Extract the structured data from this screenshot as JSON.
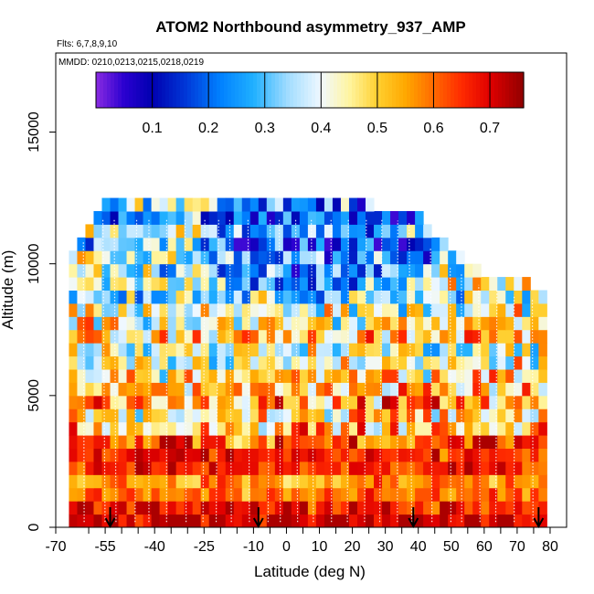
{
  "chart_data": {
    "type": "heatmap",
    "title": "ATOM2 Northbound asymmetry_937_AMP",
    "flights_label": "Flts: 6,7,8,9,10",
    "dates_label": "MMDD: 0210,0213,0215,0218,0219",
    "xlabel": "Latitude (deg N)",
    "ylabel": "Altitude (m)",
    "xlim": [
      -70,
      85
    ],
    "ylim": [
      0,
      18000
    ],
    "x_ticks": [
      -70,
      -55,
      -40,
      -25,
      -10,
      0,
      10,
      20,
      30,
      40,
      50,
      60,
      70,
      80
    ],
    "x_tick_labels": [
      "-70",
      "-55",
      "-40",
      "-25",
      "-10",
      "0",
      "10",
      "20",
      "30",
      "40",
      "50",
      "60",
      "70",
      "80"
    ],
    "x_minor_ticks": [
      -60,
      -50,
      -45,
      -35,
      -30,
      -20,
      -15,
      -5,
      5,
      15,
      25,
      35,
      45,
      55,
      65,
      75
    ],
    "y_ticks": [
      0,
      5000,
      10000,
      15000
    ],
    "y_tick_labels": [
      "0",
      "5000",
      "10000",
      "15000"
    ],
    "colorbar": {
      "range": [
        0.0,
        0.76
      ],
      "ticks": [
        0.1,
        0.2,
        0.3,
        0.4,
        0.5,
        0.6,
        0.7
      ],
      "tick_labels": [
        "0.1",
        "0.2",
        "0.3",
        "0.4",
        "0.5",
        "0.6",
        "0.7"
      ],
      "divider_values": [
        0.1,
        0.2,
        0.3,
        0.4,
        0.5,
        0.6,
        0.7
      ],
      "stops": [
        {
          "v": 0.0,
          "color": "#8a2be2"
        },
        {
          "v": 0.05,
          "color": "#2a00d0"
        },
        {
          "v": 0.1,
          "color": "#0000b0"
        },
        {
          "v": 0.16,
          "color": "#0038d8"
        },
        {
          "v": 0.22,
          "color": "#0080ff"
        },
        {
          "v": 0.28,
          "color": "#20b0ff"
        },
        {
          "v": 0.34,
          "color": "#a0dcff"
        },
        {
          "v": 0.4,
          "color": "#f0f8ff"
        },
        {
          "v": 0.45,
          "color": "#fff5a0"
        },
        {
          "v": 0.5,
          "color": "#ffd030"
        },
        {
          "v": 0.55,
          "color": "#ffa800"
        },
        {
          "v": 0.6,
          "color": "#ff6a00"
        },
        {
          "v": 0.65,
          "color": "#ff2a00"
        },
        {
          "v": 0.7,
          "color": "#e00000"
        },
        {
          "v": 0.76,
          "color": "#900000"
        }
      ]
    },
    "arrow_latitudes": [
      -53.5,
      -8.5,
      38.5,
      76.5
    ],
    "grid": {
      "lat_start": -66,
      "lat_step": 2.5,
      "lat_count": 58,
      "alt_step": 500,
      "alt_count": 25,
      "top_altitude_profile": [
        [
          -66,
          10200
        ],
        [
          -62,
          11000
        ],
        [
          -58,
          11800
        ],
        [
          -54,
          12300
        ],
        [
          -30,
          12300
        ],
        [
          -10,
          12500
        ],
        [
          10,
          12300
        ],
        [
          26,
          12000
        ],
        [
          38,
          11900
        ],
        [
          40,
          11600
        ],
        [
          46,
          10600
        ],
        [
          52,
          10000
        ],
        [
          60,
          9400
        ],
        [
          66,
          9200
        ],
        [
          74,
          9000
        ],
        [
          80,
          8900
        ]
      ]
    }
  }
}
